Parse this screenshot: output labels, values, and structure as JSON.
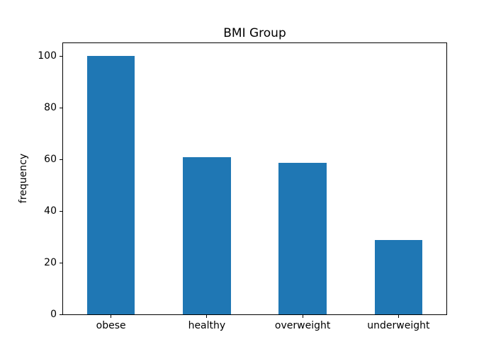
{
  "chart_data": {
    "type": "bar",
    "title": "BMI Group",
    "xlabel": "",
    "ylabel": "frequency",
    "categories": [
      "obese",
      "healthy",
      "overweight",
      "underweight"
    ],
    "values": [
      100,
      60.8,
      58.6,
      28.7
    ],
    "ylim": [
      0,
      105
    ],
    "yticks": [
      0,
      20,
      40,
      60,
      80,
      100
    ],
    "bar_color": "#1f77b4",
    "bar_width_fraction": 0.5,
    "grid": false,
    "legend": "none",
    "background_color": "#ffffff",
    "axis_color": "#000000"
  }
}
